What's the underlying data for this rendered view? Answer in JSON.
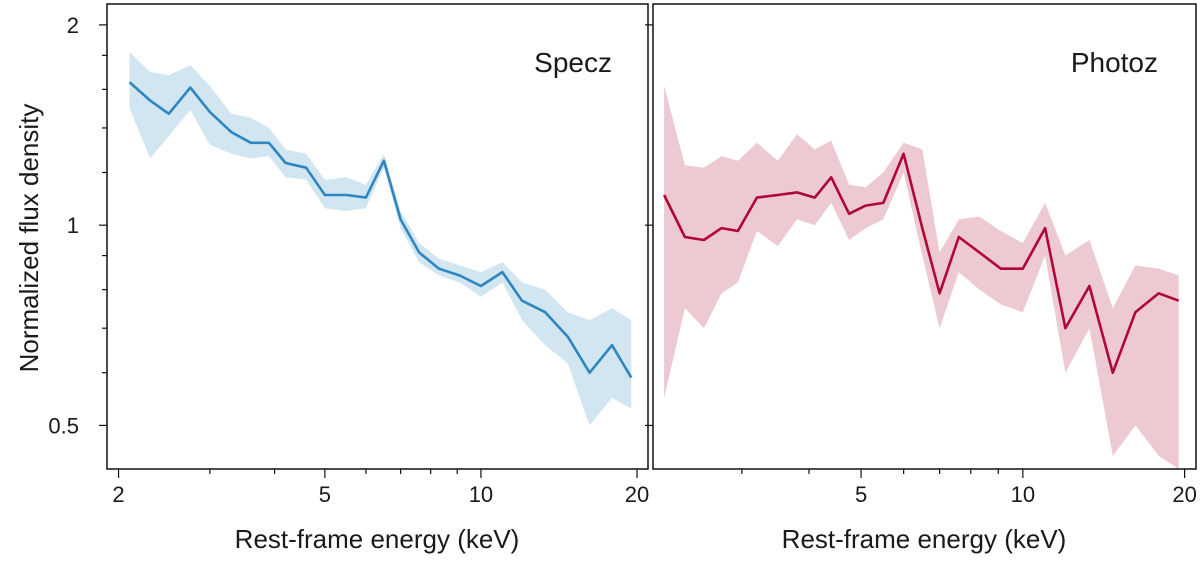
{
  "chart_data": [
    {
      "type": "line",
      "panel": "Specz",
      "xscale": "log",
      "yscale": "log",
      "xlabel": "Rest-frame energy (keV)",
      "ylabel": "Normalized flux density",
      "xlim": [
        1.9,
        21
      ],
      "ylim": [
        0.43,
        2.15
      ],
      "xticks": [
        2,
        5,
        10,
        20
      ],
      "xtick_labels": [
        "2",
        "5",
        "10",
        "20"
      ],
      "yticks": [
        0.5,
        1,
        2
      ],
      "ytick_labels": [
        "0.5",
        "1",
        "2"
      ],
      "color": "#2e86c1",
      "band_color": "#d2e6f2",
      "x": [
        2.1,
        2.3,
        2.5,
        2.75,
        3.0,
        3.3,
        3.6,
        3.9,
        4.2,
        4.6,
        5.0,
        5.5,
        6.0,
        6.5,
        7.0,
        7.6,
        8.3,
        9.1,
        10.0,
        11.0,
        12.0,
        13.3,
        14.7,
        16.2,
        17.9,
        19.5
      ],
      "y": [
        1.64,
        1.54,
        1.47,
        1.61,
        1.48,
        1.38,
        1.33,
        1.33,
        1.24,
        1.22,
        1.11,
        1.11,
        1.1,
        1.25,
        1.02,
        0.91,
        0.86,
        0.84,
        0.81,
        0.85,
        0.77,
        0.74,
        0.68,
        0.6,
        0.66,
        0.59
      ],
      "y_upper": [
        1.82,
        1.7,
        1.68,
        1.74,
        1.62,
        1.47,
        1.45,
        1.4,
        1.3,
        1.28,
        1.17,
        1.18,
        1.15,
        1.28,
        1.05,
        0.94,
        0.89,
        0.87,
        0.85,
        0.88,
        0.82,
        0.8,
        0.74,
        0.72,
        0.75,
        0.72
      ],
      "y_lower": [
        1.5,
        1.26,
        1.36,
        1.49,
        1.32,
        1.28,
        1.26,
        1.27,
        1.18,
        1.17,
        1.06,
        1.05,
        1.06,
        1.22,
        0.99,
        0.88,
        0.84,
        0.82,
        0.78,
        0.82,
        0.72,
        0.66,
        0.62,
        0.5,
        0.55,
        0.53
      ]
    },
    {
      "type": "line",
      "panel": "Photoz",
      "xscale": "log",
      "yscale": "log",
      "xlabel": "Rest-frame energy (keV)",
      "ylabel": "",
      "xlim": [
        2.05,
        21
      ],
      "ylim": [
        0.43,
        2.15
      ],
      "xticks": [
        5,
        10,
        20
      ],
      "xtick_labels": [
        "5",
        "10",
        "20"
      ],
      "yticks": [
        0.5,
        1,
        2
      ],
      "ytick_labels": [
        "",
        "",
        ""
      ],
      "color": "#b0063a",
      "band_color": "#edc9d1",
      "x": [
        2.15,
        2.35,
        2.55,
        2.75,
        2.95,
        3.2,
        3.5,
        3.8,
        4.1,
        4.4,
        4.75,
        5.1,
        5.5,
        6.0,
        6.5,
        7.0,
        7.6,
        8.3,
        9.1,
        10.0,
        11.0,
        12.0,
        13.3,
        14.7,
        16.2,
        17.9,
        19.5
      ],
      "y": [
        1.11,
        0.96,
        0.95,
        0.99,
        0.98,
        1.1,
        1.11,
        1.12,
        1.1,
        1.18,
        1.04,
        1.07,
        1.08,
        1.28,
        0.99,
        0.79,
        0.96,
        0.91,
        0.86,
        0.86,
        0.99,
        0.7,
        0.81,
        0.6,
        0.74,
        0.79,
        0.77
      ],
      "y_upper": [
        1.62,
        1.23,
        1.22,
        1.27,
        1.25,
        1.33,
        1.25,
        1.37,
        1.3,
        1.34,
        1.15,
        1.14,
        1.2,
        1.33,
        1.3,
        0.91,
        1.02,
        1.03,
        0.98,
        0.94,
        1.08,
        0.9,
        0.95,
        0.75,
        0.87,
        0.86,
        0.84
      ],
      "y_lower": [
        0.55,
        0.75,
        0.7,
        0.79,
        0.82,
        0.98,
        0.93,
        1.02,
        1.0,
        1.08,
        0.95,
        0.99,
        1.02,
        1.2,
        0.9,
        0.7,
        0.85,
        0.8,
        0.76,
        0.74,
        0.9,
        0.6,
        0.7,
        0.45,
        0.5,
        0.45,
        0.43
      ]
    }
  ]
}
